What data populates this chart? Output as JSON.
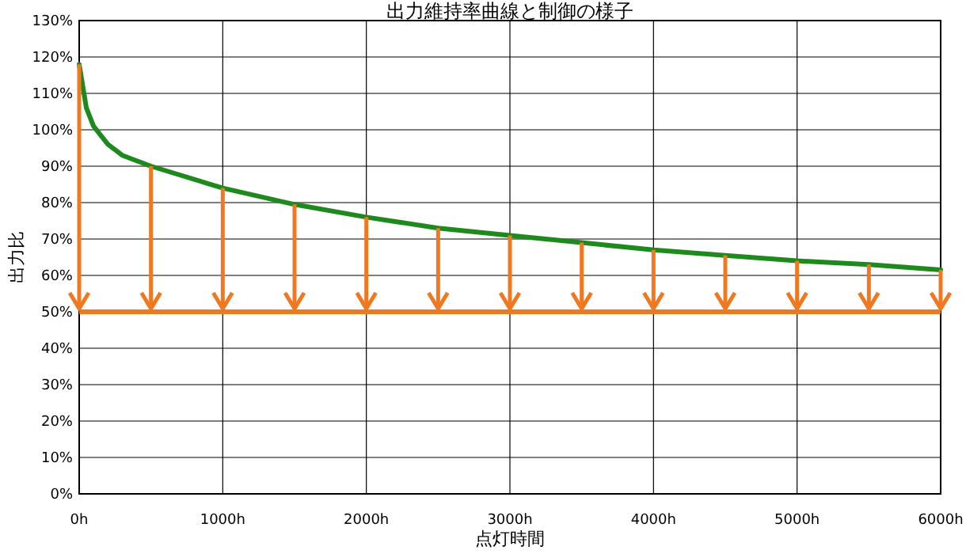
{
  "chart_data": {
    "type": "line",
    "title": "出力維持率曲線と制御の様子",
    "xlabel": "点灯時間",
    "ylabel": "出力比",
    "xlim": [
      0,
      6000
    ],
    "ylim": [
      0,
      130
    ],
    "xticks": [
      {
        "value": 0,
        "label": "0h"
      },
      {
        "value": 1000,
        "label": "1000h"
      },
      {
        "value": 2000,
        "label": "2000h"
      },
      {
        "value": 3000,
        "label": "3000h"
      },
      {
        "value": 4000,
        "label": "4000h"
      },
      {
        "value": 5000,
        "label": "5000h"
      },
      {
        "value": 6000,
        "label": "6000h"
      }
    ],
    "yticks": [
      {
        "value": 0,
        "label": "0%"
      },
      {
        "value": 10,
        "label": "10%"
      },
      {
        "value": 20,
        "label": "20%"
      },
      {
        "value": 30,
        "label": "30%"
      },
      {
        "value": 40,
        "label": "40%"
      },
      {
        "value": 50,
        "label": "50%"
      },
      {
        "value": 60,
        "label": "60%"
      },
      {
        "value": 70,
        "label": "70%"
      },
      {
        "value": 80,
        "label": "80%"
      },
      {
        "value": 90,
        "label": "90%"
      },
      {
        "value": 100,
        "label": "100%"
      },
      {
        "value": 110,
        "label": "110%"
      },
      {
        "value": 120,
        "label": "120%"
      },
      {
        "value": 130,
        "label": "130%"
      }
    ],
    "grid": true,
    "marker": "none",
    "line_style": "solid",
    "series": [
      {
        "color": "#1e8a1e",
        "x": [
          0,
          50,
          100,
          200,
          300,
          500,
          1000,
          1500,
          2000,
          2500,
          3000,
          3500,
          4000,
          4500,
          5000,
          5500,
          6000
        ],
        "values": [
          118,
          106,
          101,
          96,
          93,
          90,
          84,
          79.5,
          76,
          73,
          71,
          69,
          67,
          65.5,
          64,
          63,
          61.5
        ]
      }
    ],
    "ref_lines": [
      {
        "axis": "y",
        "value": 50,
        "color": "#f07820"
      }
    ]
  }
}
